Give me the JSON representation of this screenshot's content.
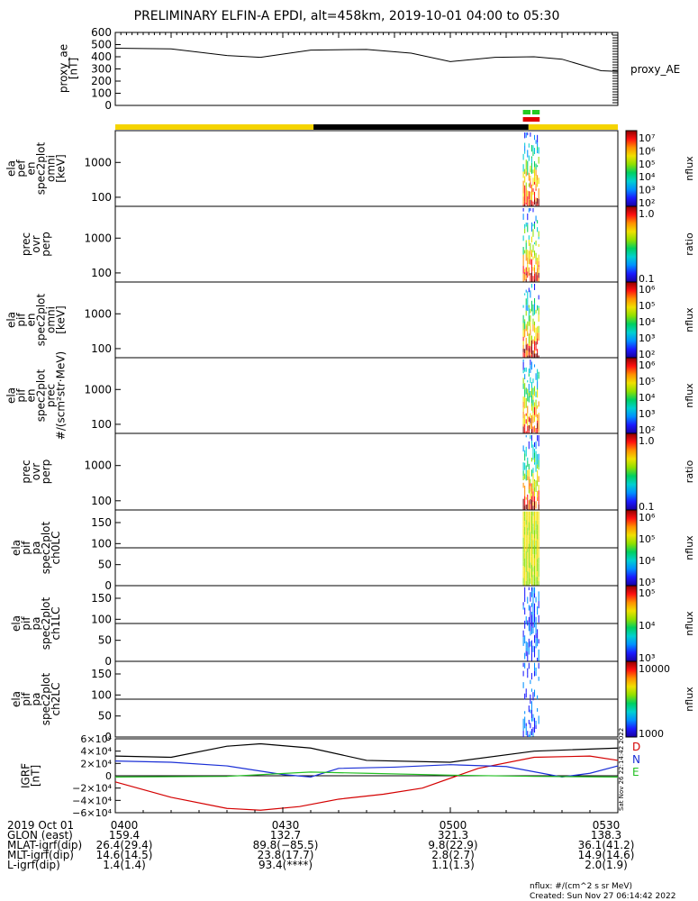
{
  "title": "PRELIMINARY ELFIN-A EPDI, alt=458km, 2019-10-01 04:00 to 05:30",
  "panels": [
    {
      "key": "ae",
      "ylabel": [
        "proxy_ae",
        "[nT]"
      ],
      "side_label": "proxy_AE",
      "yticks": [
        "600",
        "500",
        "400",
        "300",
        "200",
        "100",
        "0"
      ],
      "ylim": [
        0,
        600
      ]
    },
    {
      "key": "en_omni",
      "ylabel": [
        "ela",
        "pef",
        "en",
        "spec2plot",
        "omni",
        "[keV]"
      ],
      "yticks": [
        "1000",
        "100"
      ],
      "cbar_label": "nflux",
      "cbar_ticks": [
        "10⁷",
        "10⁶",
        "10⁵",
        "10⁴",
        "10³",
        "10²"
      ]
    },
    {
      "key": "prec_ratio_1",
      "ylabel": [
        "prec",
        "ovr",
        "perp"
      ],
      "yticks": [
        "1000",
        "100"
      ],
      "cbar_label": "ratio",
      "cbar_ticks": [
        "1.0",
        "0.1"
      ]
    },
    {
      "key": "pif_omni",
      "ylabel": [
        "ela",
        "pif",
        "en",
        "spec2plot",
        "omni",
        "[keV]"
      ],
      "yticks": [
        "1000",
        "100"
      ],
      "cbar_label": "nflux",
      "cbar_ticks": [
        "10⁶",
        "10⁵",
        "10⁴",
        "10³",
        "10²"
      ]
    },
    {
      "key": "pif_prec",
      "ylabel": [
        "ela",
        "pif",
        "en",
        "spec2plot",
        "prec",
        "#/(scm²str·MeV)"
      ],
      "yticks": [
        "1000",
        "100"
      ],
      "cbar_label": "nflux",
      "cbar_ticks": [
        "10⁶",
        "10⁵",
        "10⁴",
        "10³",
        "10²"
      ]
    },
    {
      "key": "prec_ratio_2",
      "ylabel": [
        "prec",
        "ovr",
        "perp"
      ],
      "yticks": [
        "1000",
        "100"
      ],
      "cbar_label": "ratio",
      "cbar_ticks": [
        "1.0",
        "0.1"
      ]
    },
    {
      "key": "pa_ch0",
      "ylabel": [
        "ela",
        "pif",
        "pa",
        "spec2plot",
        "ch0LC"
      ],
      "yticks": [
        "150",
        "100",
        "50",
        "0"
      ],
      "cbar_label": "nflux",
      "cbar_ticks": [
        "10⁶",
        "10⁵",
        "10⁴",
        "10³"
      ]
    },
    {
      "key": "pa_ch1",
      "ylabel": [
        "ela",
        "pif",
        "pa",
        "spec2plot",
        "ch1LC"
      ],
      "yticks": [
        "150",
        "100",
        "50",
        "0"
      ],
      "cbar_label": "nflux",
      "cbar_ticks": [
        "10⁵",
        "10⁴",
        "10³"
      ]
    },
    {
      "key": "pa_ch2",
      "ylabel": [
        "ela",
        "pif",
        "pa",
        "spec2plot",
        "ch2LC"
      ],
      "yticks": [
        "150",
        "100",
        "50",
        "0"
      ],
      "cbar_label": "nflux",
      "cbar_ticks": [
        "10000",
        "1000"
      ]
    },
    {
      "key": "igrf",
      "ylabel": [
        "IGRF",
        "[nT]"
      ],
      "yticks": [
        "6×10⁴",
        "4×10⁴",
        "2×10⁴",
        "0",
        "−2×10⁴",
        "−4×10⁴",
        "−6×10⁴"
      ],
      "legend": [
        {
          "name": "D",
          "color": "#d40000"
        },
        {
          "name": "N",
          "color": "#1a2fd6"
        },
        {
          "name": "E",
          "color": "#22c022"
        }
      ]
    }
  ],
  "xaxis": {
    "row_labels": [
      "2019 Oct 01",
      "GLON (east)",
      "MLAT-igrf(dip)",
      "MLT-igrf(dip)",
      "L-igrf(dip)"
    ],
    "columns": [
      [
        "0400",
        "159.4",
        "26.4(29.4)",
        "14.6(14.5)",
        "1.4(1.4)"
      ],
      [
        "0430",
        "132.7",
        "89.8(−85.5)",
        "23.8(17.7)",
        "93.4(****)"
      ],
      [
        "0500",
        "321.3",
        "9.8(22.9)",
        "2.8(2.7)",
        "1.1(1.3)"
      ],
      [
        "0530",
        "138.3",
        "36.1(41.2)",
        "14.9(14.6)",
        "2.0(1.9)"
      ]
    ]
  },
  "footer": {
    "units": "nflux: #/(cm^2 s sr MeV)",
    "created": "Created: Sun Nov 27 06:14:42 2022",
    "stamp": "Sat Nov 26 22:14:42 2022"
  },
  "colors": {
    "yellow_bar": "#f5d400",
    "black_bar": "#000000",
    "green_marker": "#22cc22",
    "red_marker": "#e00000"
  },
  "chart_data": {
    "type": "line",
    "title": "PRELIMINARY ELFIN-A EPDI, alt=458km, 2019-10-01 04:00 to 05:30",
    "x_unit": "UT time",
    "xlim": [
      "04:00",
      "05:30"
    ],
    "proxy_ae": {
      "x": [
        "04:00",
        "04:10",
        "04:20",
        "04:26",
        "04:35",
        "04:45",
        "04:53",
        "05:00",
        "05:08",
        "05:15",
        "05:20",
        "05:27",
        "05:30"
      ],
      "y": [
        470,
        465,
        410,
        395,
        455,
        460,
        430,
        360,
        395,
        400,
        380,
        285,
        280
      ],
      "ylim": [
        0,
        600
      ]
    },
    "igrf": {
      "ylim": [
        -60000,
        60000
      ],
      "series": [
        {
          "name": "D",
          "color": "#d40000",
          "x": [
            "04:00",
            "04:10",
            "04:20",
            "04:26",
            "04:33",
            "04:40",
            "04:48",
            "04:55",
            "05:05",
            "05:15",
            "05:25",
            "05:30"
          ],
          "y": [
            -10000,
            -35000,
            -53000,
            -56000,
            -50000,
            -38000,
            -30000,
            -20000,
            12000,
            30000,
            32000,
            25000
          ]
        },
        {
          "name": "N",
          "color": "#1a2fd6",
          "x": [
            "04:00",
            "04:10",
            "04:20",
            "04:30",
            "04:35",
            "04:40",
            "04:50",
            "05:00",
            "05:10",
            "05:20",
            "05:25",
            "05:30"
          ],
          "y": [
            24000,
            22000,
            16000,
            2000,
            -2000,
            12000,
            14000,
            18000,
            15000,
            -2000,
            4000,
            16000
          ]
        },
        {
          "name": "E",
          "color": "#22c022",
          "x": [
            "04:00",
            "04:20",
            "04:35",
            "04:45",
            "05:00",
            "05:15",
            "05:30"
          ],
          "y": [
            -2000,
            -1000,
            6000,
            4000,
            1000,
            -1000,
            -2000
          ]
        },
        {
          "name": "total",
          "color": "#000000",
          "x": [
            "04:00",
            "04:10",
            "04:20",
            "04:26",
            "04:35",
            "04:45",
            "05:00",
            "05:15",
            "05:30"
          ],
          "y": [
            32000,
            30000,
            48000,
            52000,
            45000,
            25000,
            22000,
            40000,
            45000
          ]
        }
      ]
    },
    "spectrogram_active_interval": [
      "05:13",
      "05:16"
    ]
  }
}
